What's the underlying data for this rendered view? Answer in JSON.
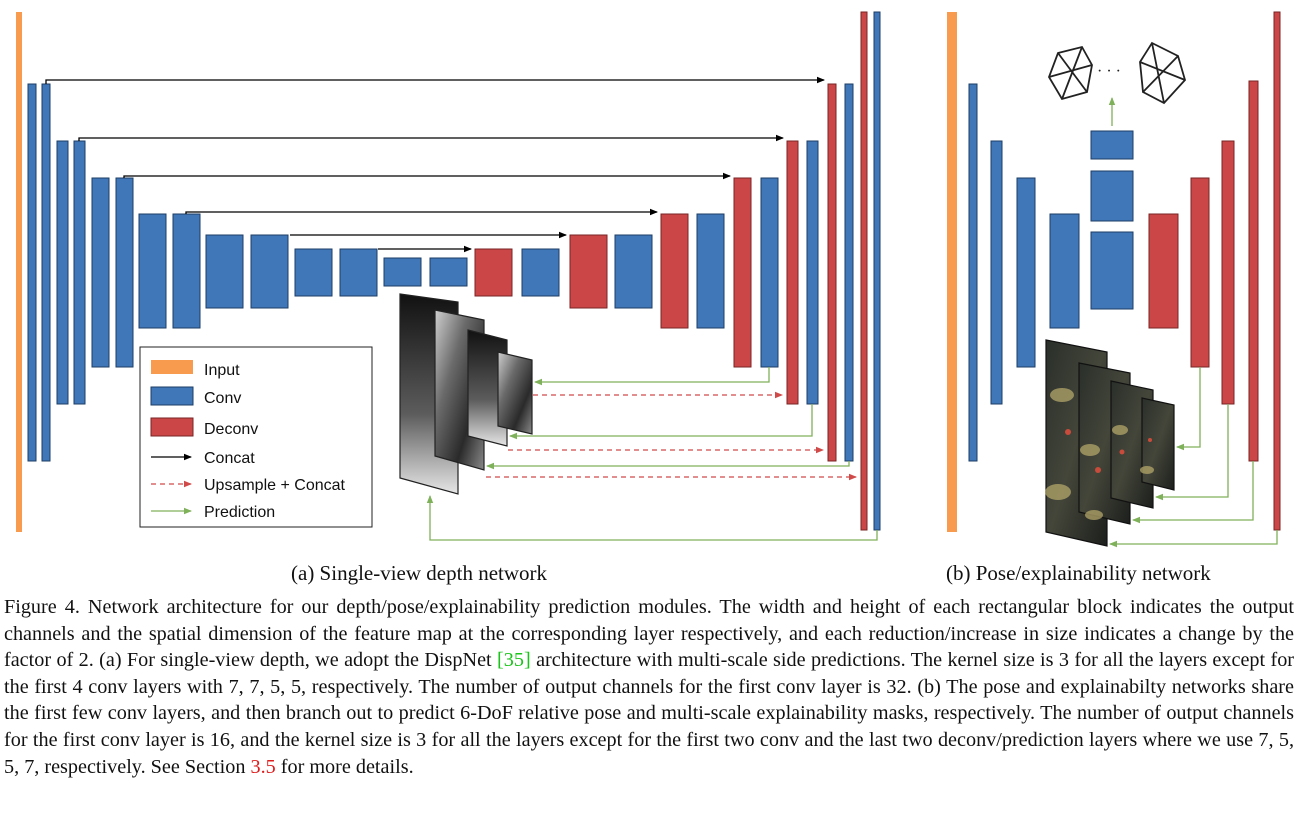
{
  "figure": {
    "legend": {
      "input": "Input",
      "conv": "Conv",
      "deconv": "Deconv",
      "concat": "Concat",
      "upsample_concat": "Upsample + Concat",
      "prediction": "Prediction"
    },
    "colors": {
      "input": "#f99b4e",
      "conv": "#3f77b8",
      "deconv": "#cb4747",
      "concat": "#000000",
      "upsample_concat": "#d14a4a",
      "prediction": "#7fb15a"
    },
    "pose_output_ellipsis": "· · ·",
    "subcaption_a": "(a) Single-view depth network",
    "subcaption_b": "(b) Pose/explainability network"
  },
  "caption": {
    "label": "Figure 4.",
    "part1": "Network architecture for our depth/pose/explainability prediction modules. The width and height of each rectangular block indicates the output channels and the spatial dimension of the feature map at the corresponding layer respectively, and each reduction/increase in size indicates a change by the factor of 2. (a) For single-view depth, we adopt the DispNet",
    "ref1": "[35]",
    "part2": "architecture with multi-scale side predictions. The kernel size is 3 for all the layers except for the first 4 conv layers with 7, 7, 5, 5, respectively. The number of output channels for the first conv layer is 32. (b) The pose and explainabilty networks share the first few conv layers, and then branch out to predict 6-DoF relative pose and multi-scale explainability masks, respectively. The number of output channels for the first conv layer is 16, and the kernel size is 3 for all the layers except for the first two conv and the last two deconv/prediction layers where we use 7, 5, 5, 7, respectively. See Section",
    "ref2": "3.5",
    "part3": "for more details."
  }
}
